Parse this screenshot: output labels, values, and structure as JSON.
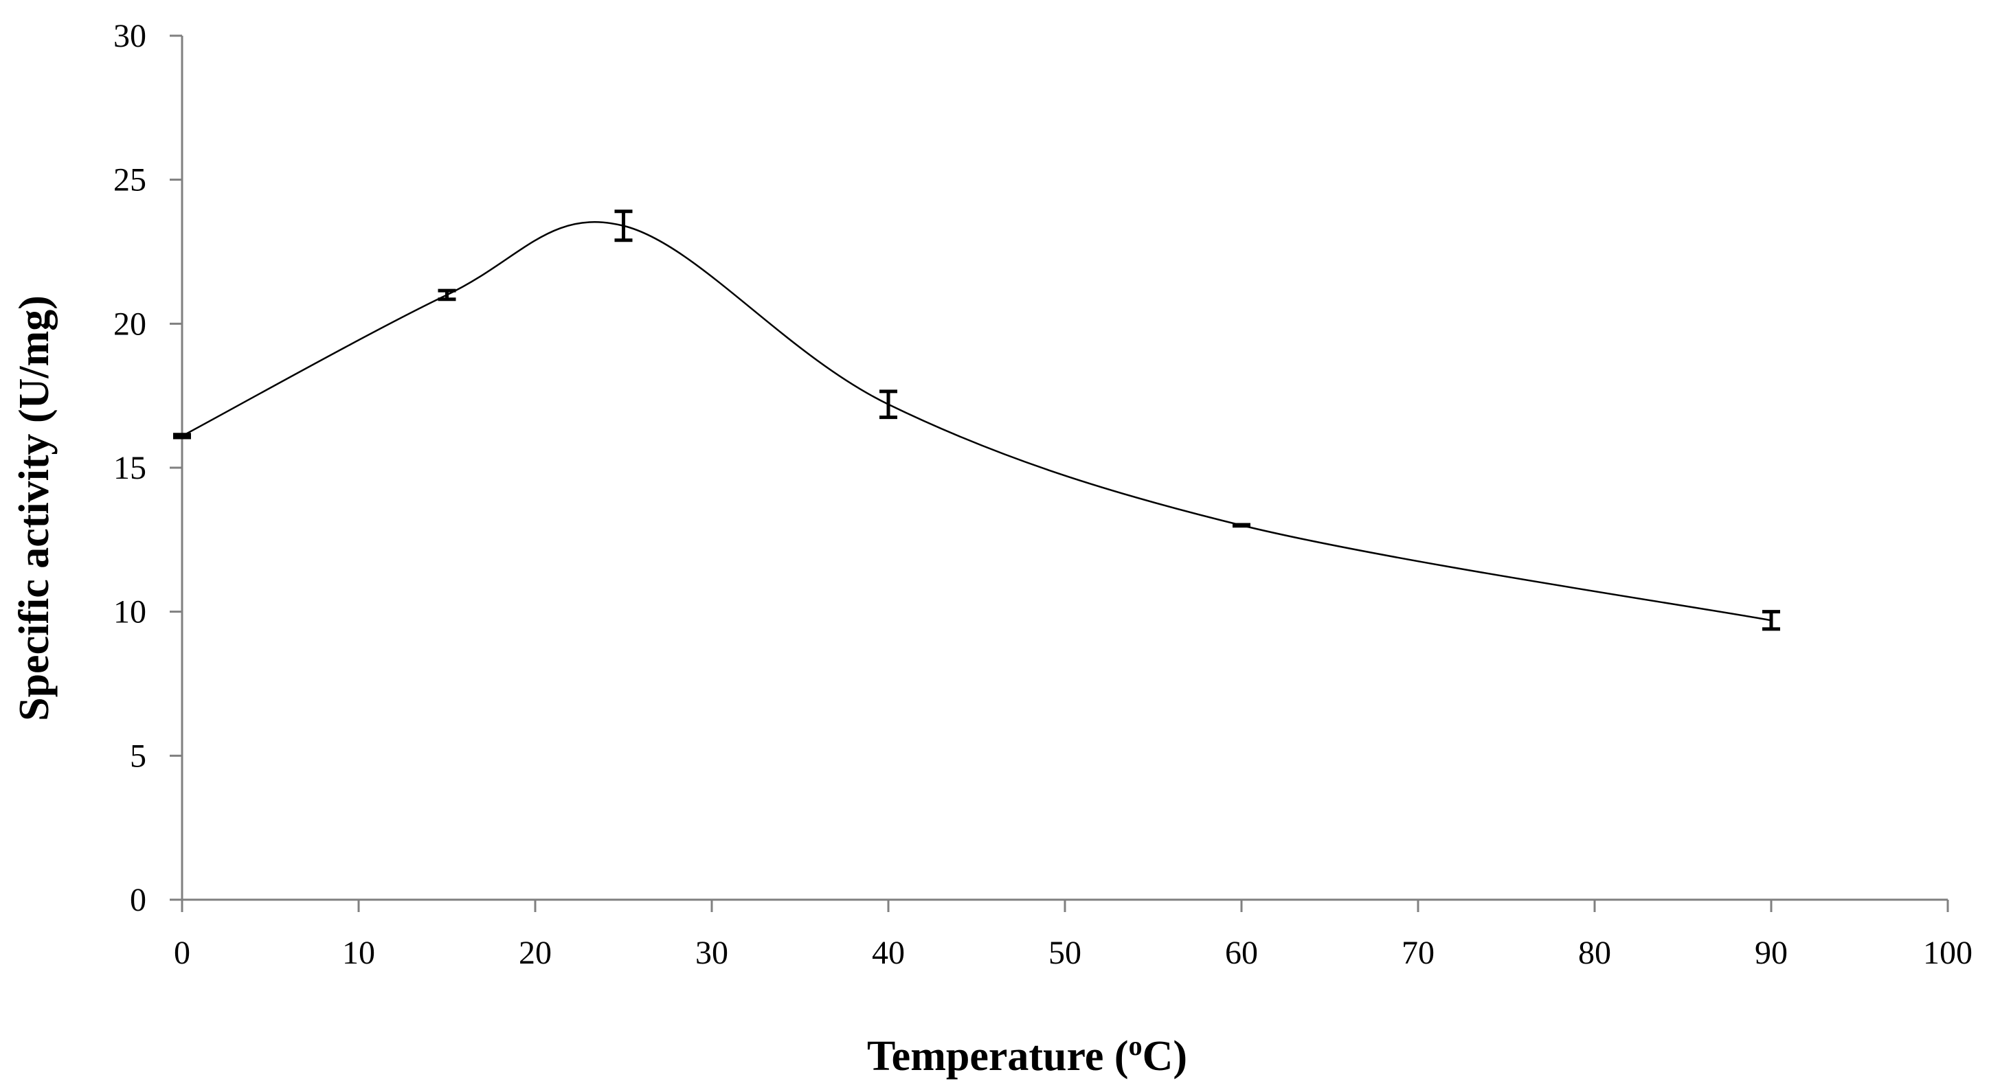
{
  "chart_data": {
    "type": "line",
    "title": "",
    "xlabel_main": "Temperature (",
    "xlabel_sup": "o",
    "xlabel_end": "C)",
    "ylabel": "Specific  activity (U/mg)",
    "xlim": [
      0,
      100
    ],
    "ylim": [
      0,
      30
    ],
    "x_ticks": [
      "0",
      "10",
      "20",
      "30",
      "40",
      "50",
      "60",
      "70",
      "80",
      "90",
      "100"
    ],
    "y_ticks": [
      "0",
      "5",
      "10",
      "15",
      "20",
      "25",
      "30"
    ],
    "grid": false,
    "legend": "none",
    "series": [
      {
        "name": "Specific activity",
        "x": [
          0,
          15,
          25,
          40,
          60,
          90
        ],
        "y": [
          16.1,
          21.0,
          23.4,
          17.2,
          13.0,
          9.7
        ],
        "error": [
          0.05,
          0.15,
          0.5,
          0.45,
          0.02,
          0.3
        ]
      }
    ],
    "line_color": "#000000",
    "axis_color": "#808080"
  }
}
